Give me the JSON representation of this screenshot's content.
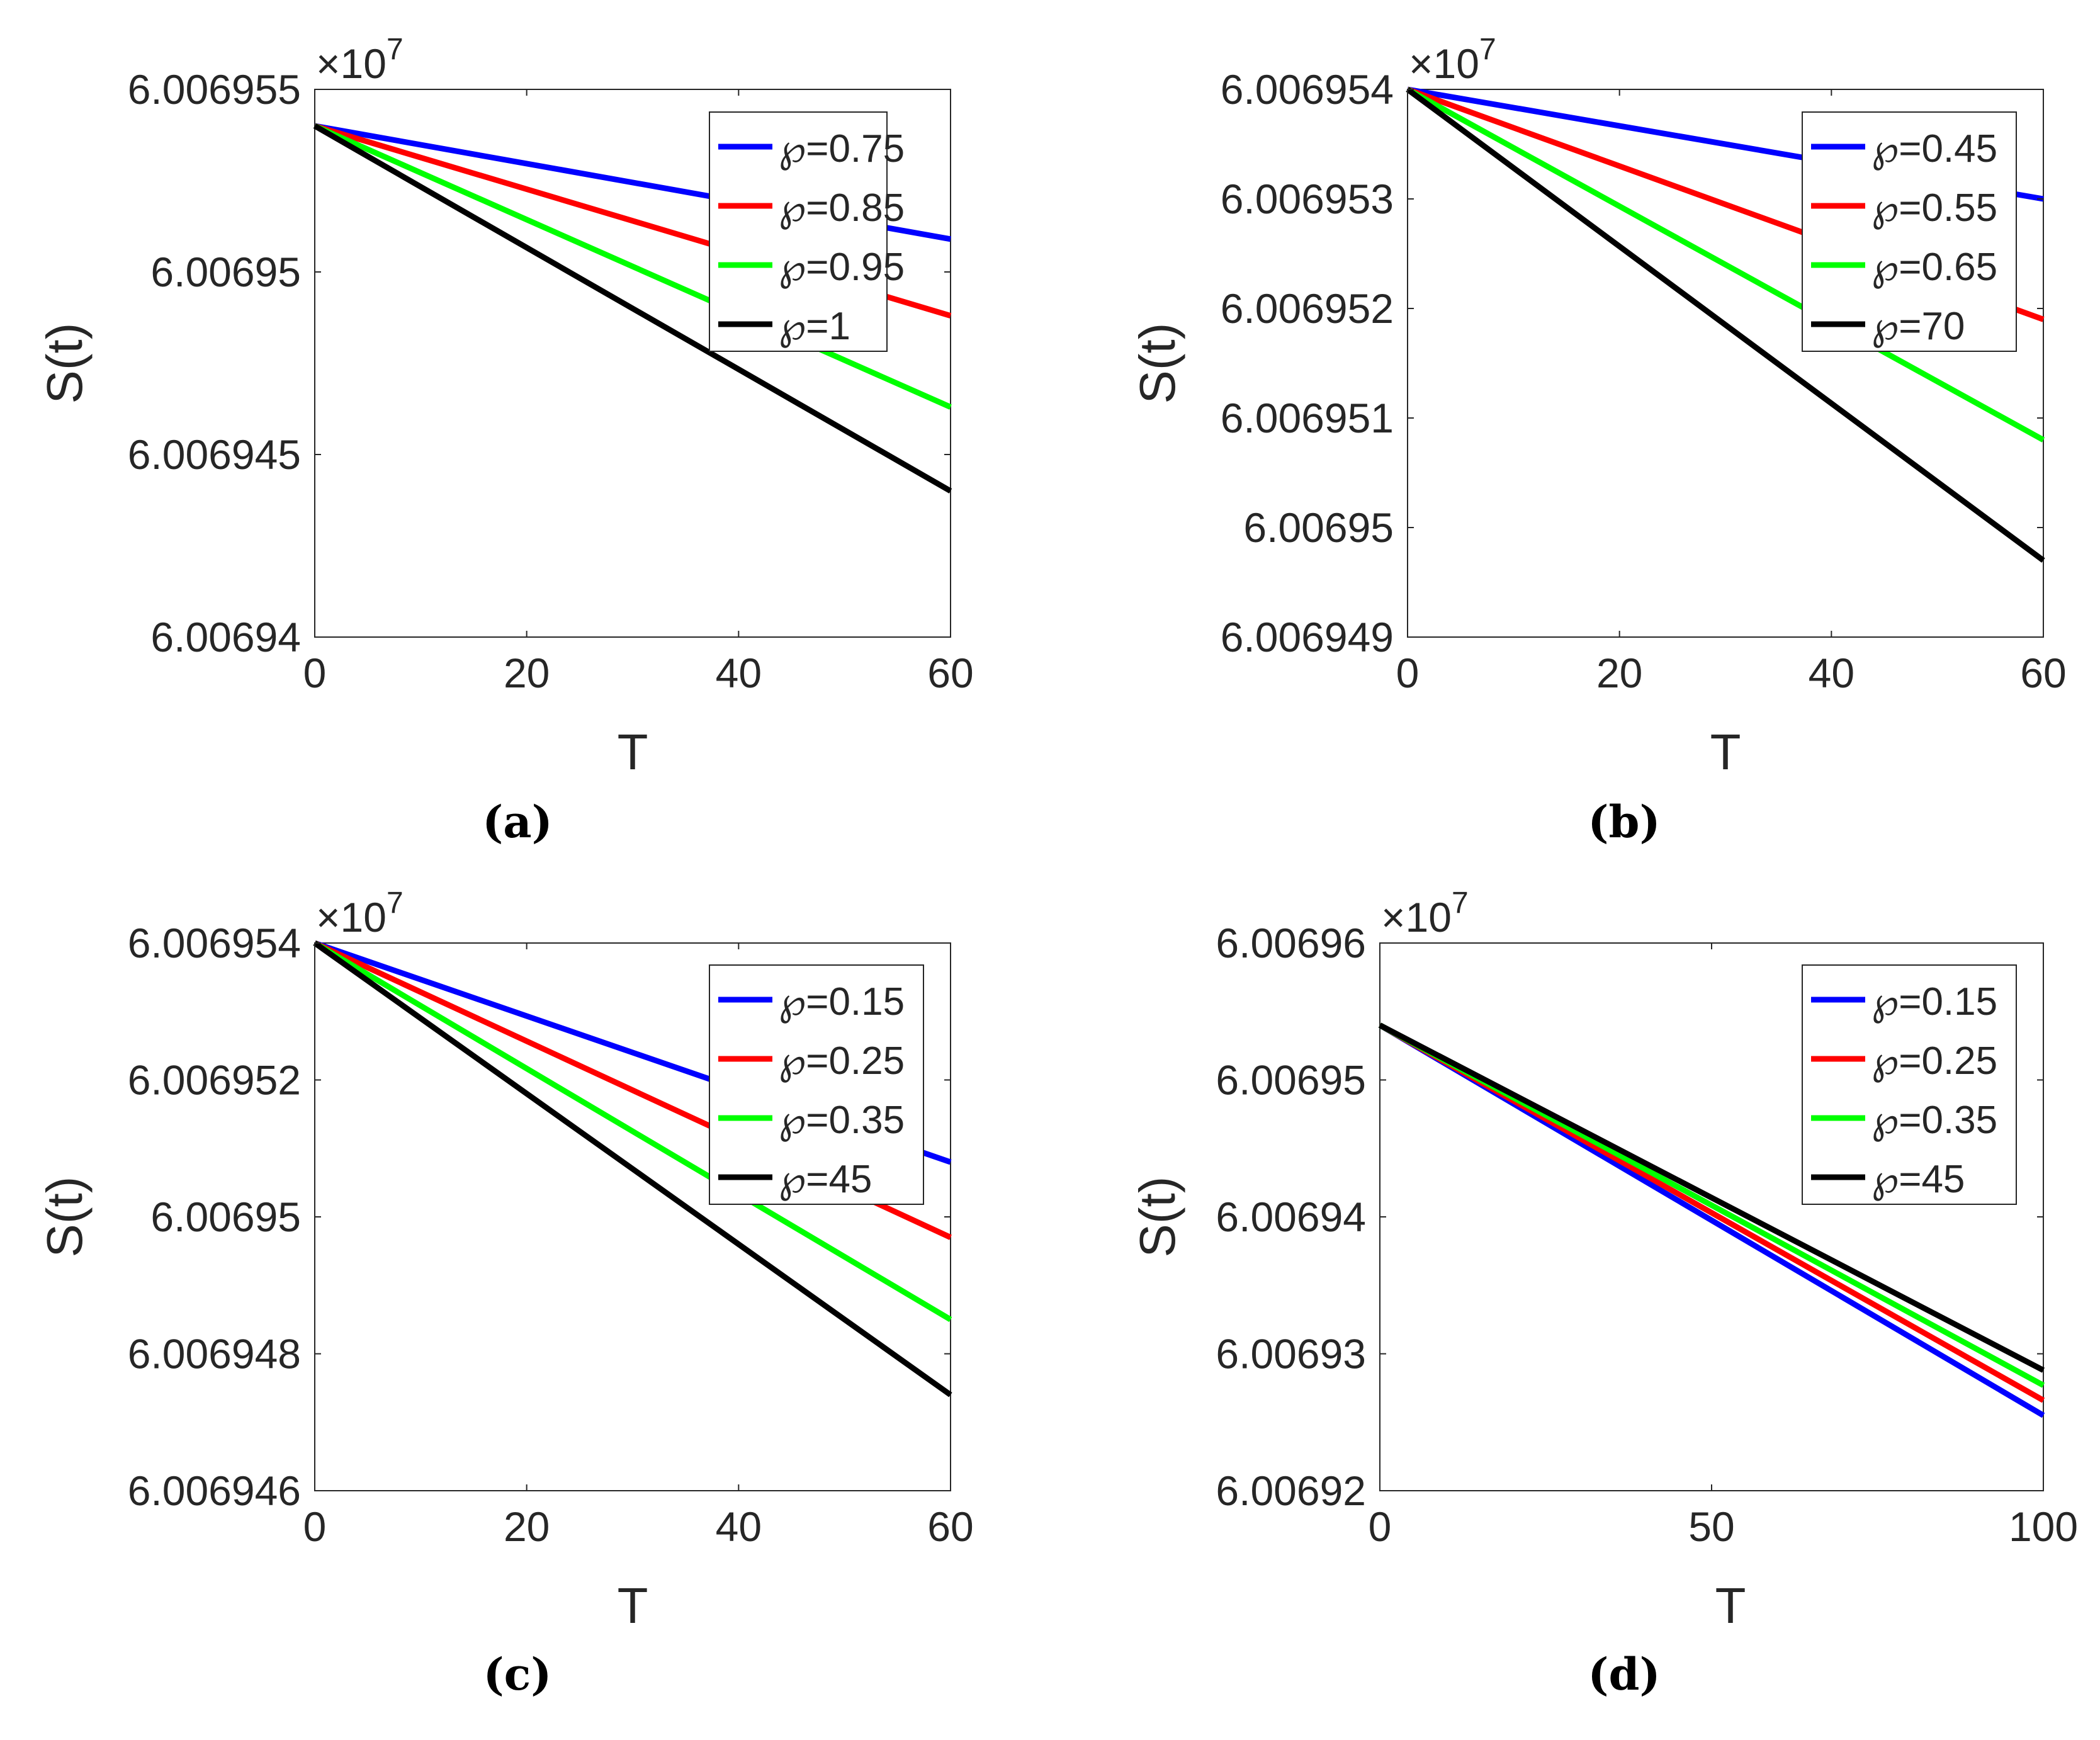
{
  "colors": {
    "blue": "#0000ff",
    "red": "#ff0000",
    "green": "#00ff00",
    "black": "#000000",
    "axis": "#262626"
  },
  "chart_data": [
    {
      "type": "line",
      "caption": "(a)",
      "exponent_label": "×10",
      "exponent_power": "7",
      "xlabel": "T",
      "ylabel": "S(t)",
      "xlim": [
        0,
        60
      ],
      "ylim": [
        6.00694,
        6.006955
      ],
      "x_ticks": [
        0,
        20,
        40,
        60
      ],
      "x_tick_labels": [
        "0",
        "20",
        "40",
        "60"
      ],
      "y_ticks": [
        6.00694,
        6.006945,
        6.00695,
        6.006955
      ],
      "y_tick_labels": [
        "6.00694",
        "6.006945",
        "6.00695",
        "6.006955"
      ],
      "legend_position": "top-right",
      "series": [
        {
          "name": "℘=0.75",
          "color": "blue",
          "x": [
            0,
            60
          ],
          "y": [
            6.006954,
            6.0069509
          ]
        },
        {
          "name": "℘=0.85",
          "color": "red",
          "x": [
            0,
            60
          ],
          "y": [
            6.006954,
            6.0069488
          ]
        },
        {
          "name": "℘=0.95",
          "color": "green",
          "x": [
            0,
            60
          ],
          "y": [
            6.006954,
            6.0069463
          ]
        },
        {
          "name": "℘=1",
          "color": "black",
          "x": [
            0,
            60
          ],
          "y": [
            6.006954,
            6.006944
          ]
        }
      ]
    },
    {
      "type": "line",
      "caption": "(b)",
      "exponent_label": "×10",
      "exponent_power": "7",
      "xlabel": "T",
      "ylabel": "S(t)",
      "xlim": [
        0,
        60
      ],
      "ylim": [
        6.006949,
        6.006954
      ],
      "x_ticks": [
        0,
        20,
        40,
        60
      ],
      "x_tick_labels": [
        "0",
        "20",
        "40",
        "60"
      ],
      "y_ticks": [
        6.006949,
        6.00695,
        6.006951,
        6.006952,
        6.006953,
        6.006954
      ],
      "y_tick_labels": [
        "6.006949",
        "6.00695",
        "6.006951",
        "6.006952",
        "6.006953",
        "6.006954"
      ],
      "legend_position": "top-right",
      "series": [
        {
          "name": "℘=0.45",
          "color": "blue",
          "x": [
            0,
            60
          ],
          "y": [
            6.006954,
            6.006953
          ]
        },
        {
          "name": "℘=0.55",
          "color": "red",
          "x": [
            0,
            60
          ],
          "y": [
            6.006954,
            6.0069519
          ]
        },
        {
          "name": "℘=0.65",
          "color": "green",
          "x": [
            0,
            60
          ],
          "y": [
            6.006954,
            6.0069508
          ]
        },
        {
          "name": "℘=70",
          "color": "black",
          "x": [
            0,
            60
          ],
          "y": [
            6.006954,
            6.0069497
          ]
        }
      ]
    },
    {
      "type": "line",
      "caption": "(c)",
      "exponent_label": "×10",
      "exponent_power": "7",
      "xlabel": "T",
      "ylabel": "S(t)",
      "xlim": [
        0,
        60
      ],
      "ylim": [
        6.006946,
        6.006954
      ],
      "x_ticks": [
        0,
        20,
        40,
        60
      ],
      "x_tick_labels": [
        "0",
        "20",
        "40",
        "60"
      ],
      "y_ticks": [
        6.006946,
        6.006948,
        6.00695,
        6.006952,
        6.006954
      ],
      "y_tick_labels": [
        "6.006946",
        "6.006948",
        "6.00695",
        "6.006952",
        "6.006954"
      ],
      "legend_position": "top-right",
      "series": [
        {
          "name": "℘=0.15",
          "color": "blue",
          "x": [
            0,
            60
          ],
          "y": [
            6.006954,
            6.0069508
          ]
        },
        {
          "name": "℘=0.25",
          "color": "red",
          "x": [
            0,
            60
          ],
          "y": [
            6.006954,
            6.0069497
          ]
        },
        {
          "name": "℘=0.35",
          "color": "green",
          "x": [
            0,
            60
          ],
          "y": [
            6.006954,
            6.0069485
          ]
        },
        {
          "name": "℘=45",
          "color": "black",
          "x": [
            0,
            60
          ],
          "y": [
            6.006954,
            6.0069474
          ]
        }
      ]
    },
    {
      "type": "line",
      "caption": "(d)",
      "exponent_label": "×10",
      "exponent_power": "7",
      "xlabel": "T",
      "ylabel": "S(t)",
      "xlim": [
        0,
        100
      ],
      "ylim": [
        6.00692,
        6.00696
      ],
      "x_ticks": [
        0,
        50,
        100
      ],
      "x_tick_labels": [
        "0",
        "50",
        "100"
      ],
      "y_ticks": [
        6.00692,
        6.00693,
        6.00694,
        6.00695,
        6.00696
      ],
      "y_tick_labels": [
        "6.00692",
        "6.00693",
        "6.00694",
        "6.00695",
        "6.00696"
      ],
      "legend_position": "top-right",
      "series": [
        {
          "name": "℘=0.15",
          "color": "blue",
          "x": [
            0,
            100
          ],
          "y": [
            6.006954,
            6.0069255
          ]
        },
        {
          "name": "℘=0.25",
          "color": "red",
          "x": [
            0,
            100
          ],
          "y": [
            6.006954,
            6.0069266
          ]
        },
        {
          "name": "℘=0.35",
          "color": "green",
          "x": [
            0,
            100
          ],
          "y": [
            6.006954,
            6.0069277
          ]
        },
        {
          "name": "℘=45",
          "color": "black",
          "x": [
            0,
            100
          ],
          "y": [
            6.006954,
            6.0069288
          ]
        }
      ]
    }
  ]
}
